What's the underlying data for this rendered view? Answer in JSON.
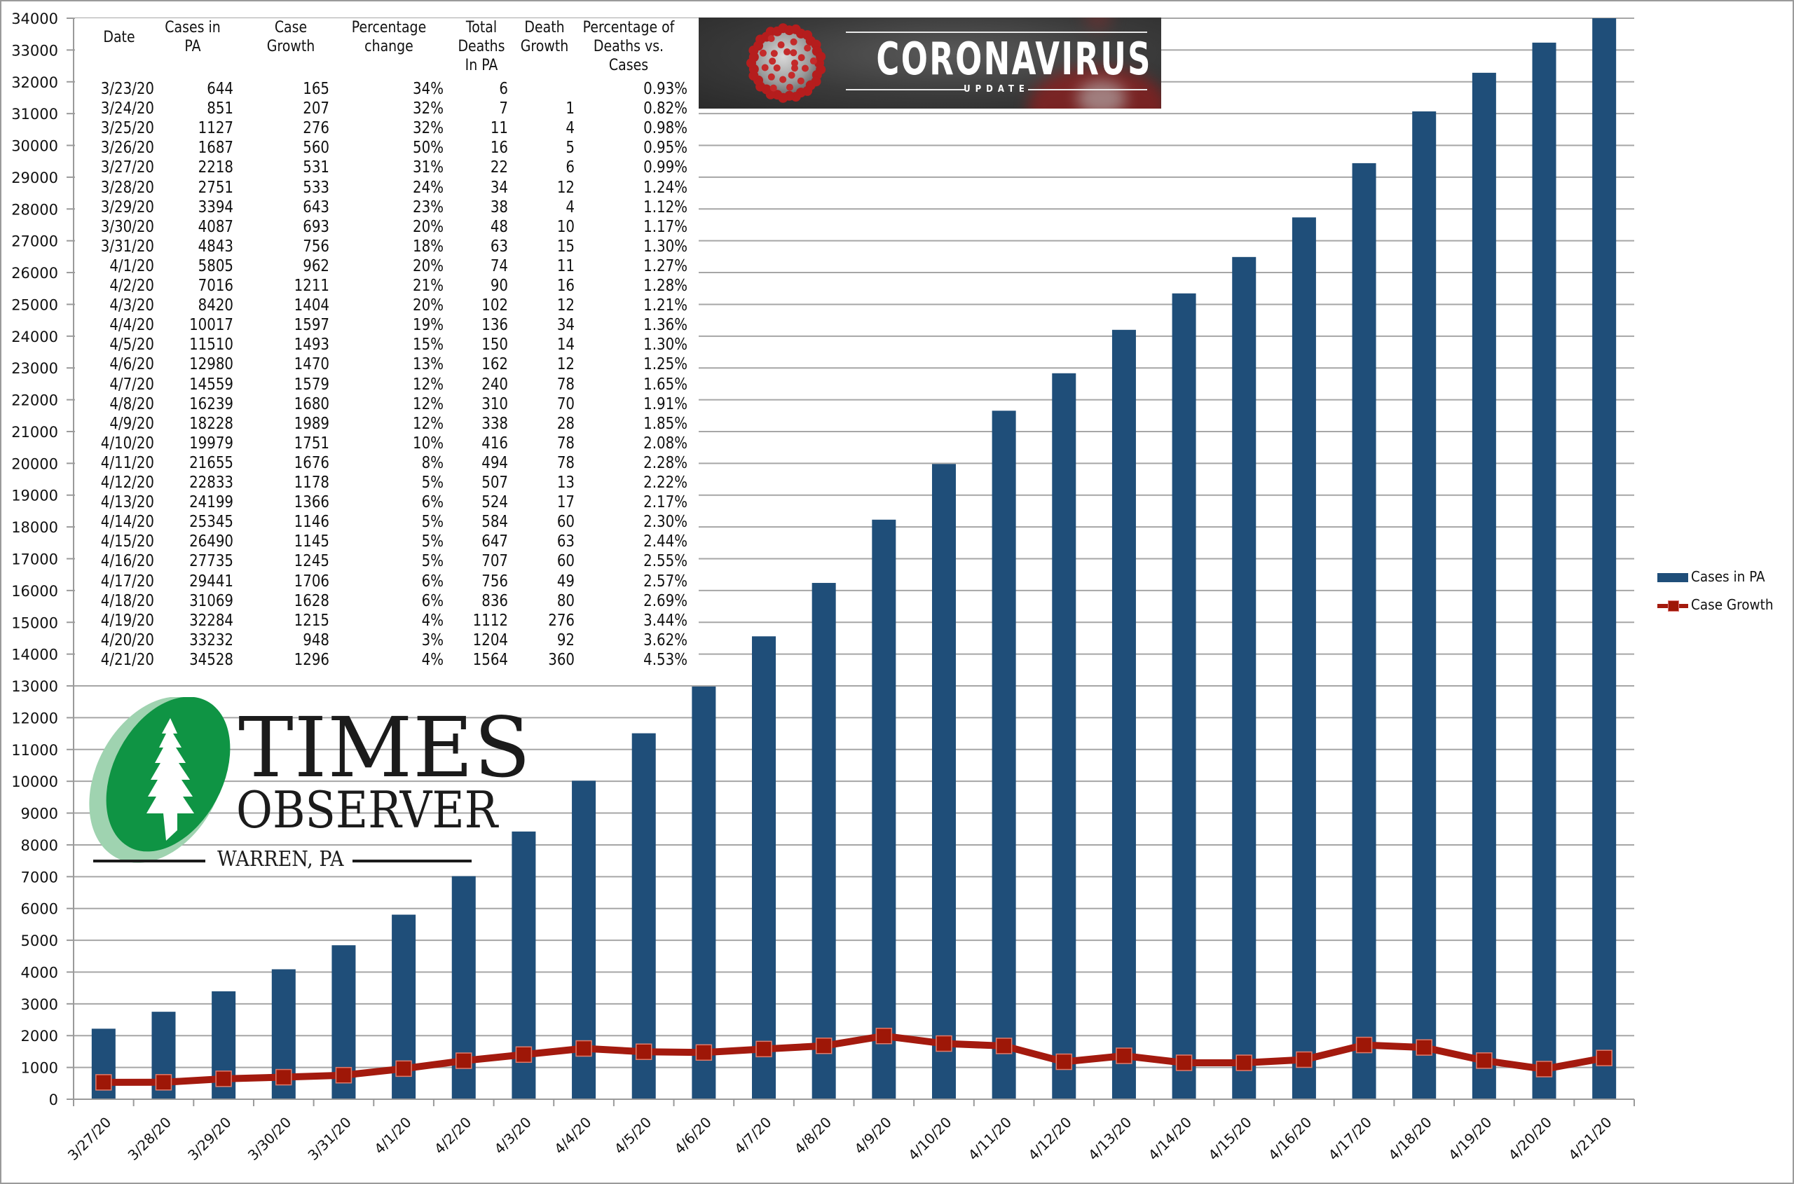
{
  "chart_data": {
    "type": "bar+line",
    "title": "",
    "xlabel": "",
    "ylabel": "",
    "ylim": [
      0,
      34000
    ],
    "y_ticks": [
      0,
      1000,
      2000,
      3000,
      4000,
      5000,
      6000,
      7000,
      8000,
      9000,
      10000,
      11000,
      12000,
      13000,
      14000,
      15000,
      16000,
      17000,
      18000,
      19000,
      20000,
      21000,
      22000,
      23000,
      24000,
      25000,
      26000,
      27000,
      28000,
      29000,
      30000,
      31000,
      32000,
      33000,
      34000
    ],
    "grid": true,
    "legend_position": "right",
    "categories": [
      "3/27/20",
      "3/28/20",
      "3/29/20",
      "3/30/20",
      "3/31/20",
      "4/1/20",
      "4/2/20",
      "4/3/20",
      "4/4/20",
      "4/5/20",
      "4/6/20",
      "4/7/20",
      "4/8/20",
      "4/9/20",
      "4/10/20",
      "4/11/20",
      "4/12/20",
      "4/13/20",
      "4/14/20",
      "4/15/20",
      "4/16/20",
      "4/17/20",
      "4/18/20",
      "4/19/20",
      "4/20/20",
      "4/21/20"
    ],
    "series": [
      {
        "name": "Cases in PA",
        "type": "bar",
        "color": "#1f4e79",
        "values": [
          2218,
          2751,
          3394,
          4087,
          4843,
          5805,
          7016,
          8420,
          10017,
          11510,
          12980,
          14559,
          16239,
          18228,
          19979,
          21655,
          22833,
          24199,
          25345,
          26490,
          27735,
          29441,
          31069,
          32284,
          33232,
          34528
        ]
      },
      {
        "name": "Case Growth",
        "type": "line",
        "color": "#a41a0e",
        "values": [
          531,
          533,
          643,
          693,
          756,
          962,
          1211,
          1404,
          1597,
          1493,
          1470,
          1579,
          1680,
          1989,
          1751,
          1676,
          1178,
          1366,
          1146,
          1145,
          1245,
          1706,
          1628,
          1215,
          948,
          1296
        ]
      }
    ]
  },
  "table": {
    "headers": [
      {
        "lines": [
          "Date"
        ]
      },
      {
        "lines": [
          "Cases in",
          "PA"
        ]
      },
      {
        "lines": [
          "Case",
          "Growth"
        ]
      },
      {
        "lines": [
          "Percentage",
          "change"
        ]
      },
      {
        "lines": [
          "Total",
          "Deaths",
          "In PA"
        ]
      },
      {
        "lines": [
          "Death",
          "Growth"
        ]
      },
      {
        "lines": [
          "Percentage of",
          "Deaths vs.",
          "Cases"
        ]
      }
    ],
    "rows": [
      [
        "3/23/20",
        "644",
        "165",
        "34%",
        "6",
        "",
        "0.93%"
      ],
      [
        "3/24/20",
        "851",
        "207",
        "32%",
        "7",
        "1",
        "0.82%"
      ],
      [
        "3/25/20",
        "1127",
        "276",
        "32%",
        "11",
        "4",
        "0.98%"
      ],
      [
        "3/26/20",
        "1687",
        "560",
        "50%",
        "16",
        "5",
        "0.95%"
      ],
      [
        "3/27/20",
        "2218",
        "531",
        "31%",
        "22",
        "6",
        "0.99%"
      ],
      [
        "3/28/20",
        "2751",
        "533",
        "24%",
        "34",
        "12",
        "1.24%"
      ],
      [
        "3/29/20",
        "3394",
        "643",
        "23%",
        "38",
        "4",
        "1.12%"
      ],
      [
        "3/30/20",
        "4087",
        "693",
        "20%",
        "48",
        "10",
        "1.17%"
      ],
      [
        "3/31/20",
        "4843",
        "756",
        "18%",
        "63",
        "15",
        "1.30%"
      ],
      [
        "4/1/20",
        "5805",
        "962",
        "20%",
        "74",
        "11",
        "1.27%"
      ],
      [
        "4/2/20",
        "7016",
        "1211",
        "21%",
        "90",
        "16",
        "1.28%"
      ],
      [
        "4/3/20",
        "8420",
        "1404",
        "20%",
        "102",
        "12",
        "1.21%"
      ],
      [
        "4/4/20",
        "10017",
        "1597",
        "19%",
        "136",
        "34",
        "1.36%"
      ],
      [
        "4/5/20",
        "11510",
        "1493",
        "15%",
        "150",
        "14",
        "1.30%"
      ],
      [
        "4/6/20",
        "12980",
        "1470",
        "13%",
        "162",
        "12",
        "1.25%"
      ],
      [
        "4/7/20",
        "14559",
        "1579",
        "12%",
        "240",
        "78",
        "1.65%"
      ],
      [
        "4/8/20",
        "16239",
        "1680",
        "12%",
        "310",
        "70",
        "1.91%"
      ],
      [
        "4/9/20",
        "18228",
        "1989",
        "12%",
        "338",
        "28",
        "1.85%"
      ],
      [
        "4/10/20",
        "19979",
        "1751",
        "10%",
        "416",
        "78",
        "2.08%"
      ],
      [
        "4/11/20",
        "21655",
        "1676",
        "8%",
        "494",
        "78",
        "2.28%"
      ],
      [
        "4/12/20",
        "22833",
        "1178",
        "5%",
        "507",
        "13",
        "2.22%"
      ],
      [
        "4/13/20",
        "24199",
        "1366",
        "6%",
        "524",
        "17",
        "2.17%"
      ],
      [
        "4/14/20",
        "25345",
        "1146",
        "5%",
        "584",
        "60",
        "2.30%"
      ],
      [
        "4/15/20",
        "26490",
        "1145",
        "5%",
        "647",
        "63",
        "2.44%"
      ],
      [
        "4/16/20",
        "27735",
        "1245",
        "5%",
        "707",
        "60",
        "2.55%"
      ],
      [
        "4/17/20",
        "29441",
        "1706",
        "6%",
        "756",
        "49",
        "2.57%"
      ],
      [
        "4/18/20",
        "31069",
        "1628",
        "6%",
        "836",
        "80",
        "2.69%"
      ],
      [
        "4/19/20",
        "32284",
        "1215",
        "4%",
        "1112",
        "276",
        "3.44%"
      ],
      [
        "4/20/20",
        "33232",
        "948",
        "3%",
        "1204",
        "92",
        "3.62%"
      ],
      [
        "4/21/20",
        "34528",
        "1296",
        "4%",
        "1564",
        "360",
        "4.53%"
      ]
    ]
  },
  "banner": {
    "title": "CORONAVIRUS",
    "subtitle": "UPDATE"
  },
  "logo": {
    "line1": "TIMES",
    "line2": "OBSERVER",
    "location": "WARREN, PA",
    "green": "#0f9444",
    "light_green": "#9fd3b0"
  },
  "legend": {
    "items": [
      {
        "label": "Cases in PA"
      },
      {
        "label": "Case Growth"
      }
    ]
  },
  "colors": {
    "bar": "#1f4e79",
    "line": "#a41a0e",
    "marker": "#9e1707",
    "grid": "#a6a6a6",
    "axis": "#9a9a9a"
  }
}
